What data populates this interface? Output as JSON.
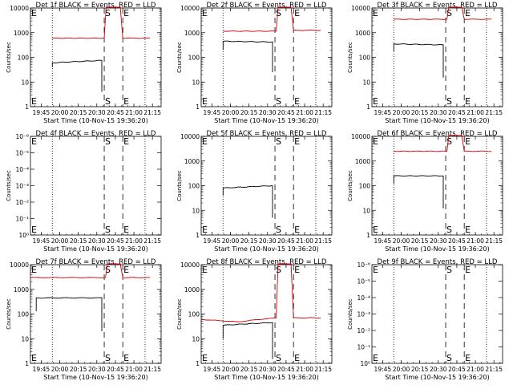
{
  "chart_data": [
    {
      "type": "line",
      "title": "Det 1f BLACK = Events, RED = LLD",
      "xlabel": "Start Time (10-Nov-15 19:36:20)",
      "ylabel": "Counts/sec",
      "x_ticks": [
        "19:45",
        "20:00",
        "20:15",
        "20:30",
        "20:45",
        "21:00",
        "21:15"
      ],
      "y_ticks": [
        "1",
        "10",
        "100",
        "1000",
        "10000"
      ],
      "ylim": [
        1,
        10000
      ],
      "y_scale": "log",
      "markers": [
        {
          "label": "E",
          "time": "19:36:30",
          "style": "text"
        },
        {
          "label": "S",
          "time": "20:36:00",
          "style": "dashed"
        },
        {
          "label": "E",
          "time": "20:51:00",
          "style": "dashed"
        }
      ],
      "dotted_lines": [
        "19:54",
        "21:09"
      ],
      "series": [
        {
          "color": "#cc0000",
          "kind": "flat_with_bump",
          "start": "19:54",
          "end": "21:13",
          "level": 600,
          "bump_start": "20:36",
          "bump_end": "20:51",
          "bump_level": 11000,
          "end_level": 600
        },
        {
          "color": "#000000",
          "kind": "events",
          "start": "19:54",
          "end": "20:34",
          "level_start": 60,
          "level_end": 75,
          "initial": 40,
          "drop_to": 4
        }
      ]
    },
    {
      "type": "line",
      "title": "Det 2f BLACK = Events, RED = LLD",
      "xlabel": "Start Time (10-Nov-15 19:36:20)",
      "ylabel": "Counts/sec",
      "x_ticks": [
        "19:45",
        "20:00",
        "20:15",
        "20:30",
        "20:45",
        "21:00",
        "21:15"
      ],
      "y_ticks": [
        "1",
        "10",
        "100",
        "1000",
        "10000"
      ],
      "ylim": [
        1,
        10000
      ],
      "y_scale": "log",
      "markers": [
        {
          "label": "E",
          "time": "19:36:30",
          "style": "text"
        },
        {
          "label": "S",
          "time": "20:36:00",
          "style": "dashed"
        },
        {
          "label": "E",
          "time": "20:51:00",
          "style": "dashed"
        }
      ],
      "dotted_lines": [
        "19:54",
        "21:09"
      ],
      "series": [
        {
          "color": "#cc0000",
          "kind": "flat_with_bump",
          "start": "19:54",
          "end": "21:13",
          "level": 1150,
          "bump_start": "20:37",
          "bump_end": "20:51",
          "bump_level": 11000,
          "end_level": 1250
        },
        {
          "color": "#000000",
          "kind": "events",
          "start": "19:54",
          "end": "20:34",
          "level_start": 450,
          "level_end": 420,
          "initial": 200,
          "drop_to": 25
        }
      ]
    },
    {
      "type": "line",
      "title": "Det 3f BLACK = Events, RED = LLD",
      "xlabel": "Start Time (10-Nov-15 19:36:20)",
      "ylabel": "Counts/sec",
      "x_ticks": [
        "19:45",
        "20:00",
        "20:15",
        "20:30",
        "20:45",
        "21:00",
        "21:15"
      ],
      "y_ticks": [
        "1",
        "10",
        "100",
        "1000",
        "10000"
      ],
      "ylim": [
        1,
        10000
      ],
      "y_scale": "log",
      "markers": [
        {
          "label": "E",
          "time": "19:36:30",
          "style": "text"
        },
        {
          "label": "S",
          "time": "20:36:00",
          "style": "dashed"
        },
        {
          "label": "E",
          "time": "20:51:00",
          "style": "dashed"
        }
      ],
      "dotted_lines": [
        "19:54",
        "21:09"
      ],
      "series": [
        {
          "color": "#cc0000",
          "kind": "flat_with_bump",
          "start": "19:54",
          "end": "21:13",
          "level": 3500,
          "bump_start": "20:37",
          "bump_end": "20:51",
          "bump_level": 11000,
          "end_level": 3500
        },
        {
          "color": "#000000",
          "kind": "events",
          "start": "19:54",
          "end": "20:34",
          "level_start": 350,
          "level_end": 320,
          "initial": 180,
          "drop_to": 15
        }
      ]
    },
    {
      "type": "line",
      "title": "Det 4f BLACK = Events, RED = LLD",
      "xlabel": "Start Time (10-Nov-15 19:36:20)",
      "ylabel": "Counts/sec",
      "x_ticks": [
        "19:45",
        "20:00",
        "20:15",
        "20:30",
        "20:45",
        "21:00",
        "21:15"
      ],
      "y_ticks": [
        "10⁰",
        "10⁻¹",
        "10⁻²",
        "10⁻³",
        "10⁻⁴",
        "10⁻⁵",
        "10⁻⁶"
      ],
      "y_scale": "log",
      "markers": [
        {
          "label": "E",
          "time": "19:36:30",
          "style": "text"
        },
        {
          "label": "S",
          "time": "20:36:00",
          "style": "dashed"
        },
        {
          "label": "E",
          "time": "20:51:00",
          "style": "dashed"
        }
      ],
      "dotted_lines": [
        "19:54",
        "21:09"
      ],
      "series": []
    },
    {
      "type": "line",
      "title": "Det 5f BLACK = Events, RED = LLD",
      "xlabel": "Start Time (10-Nov-15 19:36:20)",
      "ylabel": "Counts/sec",
      "x_ticks": [
        "19:45",
        "20:00",
        "20:15",
        "20:30",
        "20:45",
        "21:00",
        "21:15"
      ],
      "y_ticks": [
        "1",
        "10",
        "100",
        "1000",
        "10000"
      ],
      "ylim": [
        1,
        10000
      ],
      "y_scale": "log",
      "markers": [
        {
          "label": "E",
          "time": "19:36:30",
          "style": "text"
        },
        {
          "label": "S",
          "time": "20:36:00",
          "style": "dashed"
        },
        {
          "label": "E",
          "time": "20:51:00",
          "style": "dashed"
        }
      ],
      "dotted_lines": [
        "19:54",
        "21:09"
      ],
      "series": [
        {
          "color": "#000000",
          "kind": "events",
          "start": "19:54",
          "end": "20:34",
          "level_start": 80,
          "level_end": 100,
          "initial": 40,
          "drop_to": 5
        }
      ]
    },
    {
      "type": "line",
      "title": "Det 6f BLACK = Events, RED = LLD",
      "xlabel": "Start Time (10-Nov-15 19:36:20)",
      "ylabel": "Counts/sec",
      "x_ticks": [
        "19:45",
        "20:00",
        "20:15",
        "20:30",
        "20:45",
        "21:00",
        "21:15"
      ],
      "y_ticks": [
        "1",
        "10",
        "100",
        "1000",
        "10000"
      ],
      "ylim": [
        1,
        10000
      ],
      "y_scale": "log",
      "markers": [
        {
          "label": "E",
          "time": "19:36:30",
          "style": "text"
        },
        {
          "label": "S",
          "time": "20:36:00",
          "style": "dashed"
        },
        {
          "label": "E",
          "time": "20:51:00",
          "style": "dashed"
        }
      ],
      "dotted_lines": [
        "19:54",
        "21:09"
      ],
      "series": [
        {
          "color": "#cc0000",
          "kind": "flat_with_bump",
          "start": "19:54",
          "end": "21:13",
          "level": 2500,
          "bump_start": "20:37",
          "bump_end": "20:51",
          "bump_level": 11000,
          "end_level": 2500
        },
        {
          "color": "#000000",
          "kind": "events",
          "start": "19:54",
          "end": "20:34",
          "level_start": 250,
          "level_end": 250,
          "initial": 120,
          "drop_to": 12
        }
      ]
    },
    {
      "type": "line",
      "title": "Det 7f BLACK = Events, RED = LLD",
      "xlabel": "Start Time (10-Nov-15 19:36:20)",
      "ylabel": "Counts/sec",
      "x_ticks": [
        "19:45",
        "20:00",
        "20:15",
        "20:30",
        "20:45",
        "21:00",
        "21:15"
      ],
      "y_ticks": [
        "1",
        "10",
        "100",
        "1000",
        "10000"
      ],
      "ylim": [
        1,
        10000
      ],
      "y_scale": "log",
      "markers": [
        {
          "label": "E",
          "time": "19:36:30",
          "style": "text"
        },
        {
          "label": "S",
          "time": "20:36:00",
          "style": "dashed"
        },
        {
          "label": "E",
          "time": "20:51:00",
          "style": "dashed"
        }
      ],
      "dotted_lines": [
        "19:54",
        "21:09"
      ],
      "series": [
        {
          "color": "#cc0000",
          "kind": "flat_with_bump",
          "start": "19:36",
          "end": "21:13",
          "level": 3000,
          "bump_start": "20:37",
          "bump_end": "20:51",
          "bump_level": 11000,
          "end_level": 3000
        },
        {
          "color": "#000000",
          "kind": "events",
          "start": "19:41",
          "end": "20:34",
          "level_start": 450,
          "level_end": 450,
          "initial": 130,
          "drop_to": 20
        }
      ]
    },
    {
      "type": "line",
      "title": "Det 8f BLACK = Events, RED = LLD",
      "xlabel": "Start Time (10-Nov-15 19:36:20)",
      "ylabel": "Counts/sec",
      "x_ticks": [
        "19:45",
        "20:00",
        "20:15",
        "20:30",
        "20:45",
        "21:00",
        "21:15"
      ],
      "y_ticks": [
        "1",
        "10",
        "100",
        "1000",
        "10000"
      ],
      "ylim": [
        1,
        10000
      ],
      "y_scale": "log",
      "markers": [
        {
          "label": "E",
          "time": "19:36:30",
          "style": "text"
        },
        {
          "label": "S",
          "time": "20:36:00",
          "style": "dashed"
        },
        {
          "label": "E",
          "time": "20:51:00",
          "style": "dashed"
        }
      ],
      "dotted_lines": [
        "19:54",
        "21:09"
      ],
      "series": [
        {
          "color": "#cc0000",
          "kind": "dip_with_bump",
          "start": "19:36",
          "end": "21:13",
          "level": 60,
          "mid_level": 48,
          "rise_level": 70,
          "bump_start": "20:37",
          "bump_end": "20:51",
          "bump_level": 11000,
          "end_level": 70
        },
        {
          "color": "#000000",
          "kind": "events",
          "start": "19:54",
          "end": "20:34",
          "level_start": 35,
          "level_end": 45,
          "initial": 10,
          "drop_to": 1.5
        }
      ]
    },
    {
      "type": "line",
      "title": "Det 9f BLACK = Events, RED = LLD",
      "xlabel": "Start Time (10-Nov-15 19:36:20)",
      "ylabel": "Counts/sec",
      "x_ticks": [
        "19:45",
        "20:00",
        "20:15",
        "20:30",
        "20:45",
        "21:00",
        "21:15"
      ],
      "y_ticks": [
        "10⁰",
        "10⁻¹",
        "10⁻²",
        "10⁻³",
        "10⁻⁴",
        "10⁻⁵",
        "10⁻⁶"
      ],
      "y_scale": "log",
      "markers": [
        {
          "label": "E",
          "time": "19:36:30",
          "style": "text"
        },
        {
          "label": "S",
          "time": "20:36:00",
          "style": "dashed"
        },
        {
          "label": "E",
          "time": "20:51:00",
          "style": "dashed"
        }
      ],
      "dotted_lines": [
        "19:54",
        "21:09"
      ],
      "series": []
    }
  ]
}
